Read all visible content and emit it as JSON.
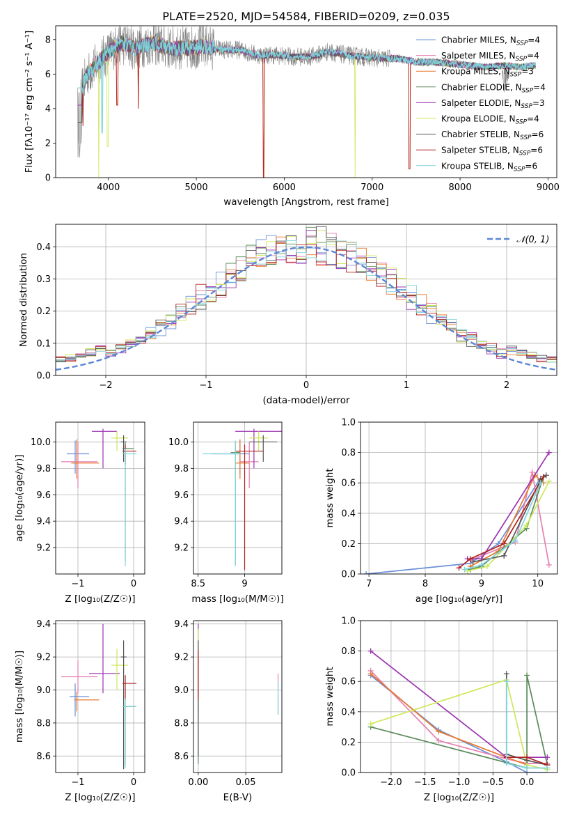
{
  "title": "PLATE=2520, MJD=54584, FIBERID=0209, z=0.035",
  "colors": {
    "Chabrier MILES": "#6a8fd8",
    "Salpeter MILES": "#e67fb0",
    "Kroupa MILES": "#e8782f",
    "Chabrier ELODIE": "#5a8a5a",
    "Salpeter ELODIE": "#9b32b0",
    "Kroupa ELODIE": "#cde85a",
    "Chabrier STELIB": "#555555",
    "Salpeter STELIB": "#b0201e",
    "Kroupa STELIB": "#7fd6dc"
  },
  "chart_data": [
    {
      "id": "spectrum",
      "type": "line",
      "title": "PLATE=2520, MJD=54584, FIBERID=0209, z=0.035",
      "xlabel": "wavelength [Angstrom, rest frame]",
      "ylabel": "Flux [fλ10⁻¹⁷ erg cm⁻² s⁻¹ A⁻¹]",
      "xlim": [
        3400,
        9100
      ],
      "ylim": [
        0,
        8.8
      ],
      "xticks": [
        4000,
        5000,
        6000,
        7000,
        8000,
        9000
      ],
      "yticks": [
        0,
        2,
        4,
        6,
        8
      ],
      "grid": false,
      "legend_position": "top-right",
      "legend": [
        {
          "name": "Chabrier MILES",
          "nssp": "4"
        },
        {
          "name": "Salpeter MILES",
          "nssp": "4"
        },
        {
          "name": "Kroupa MILES",
          "nssp": "3"
        },
        {
          "name": "Chabrier ELODIE",
          "nssp": "4"
        },
        {
          "name": "Salpeter ELODIE",
          "nssp": "3"
        },
        {
          "name": "Kroupa ELODIE",
          "nssp": "4"
        },
        {
          "name": "Chabrier STELIB",
          "nssp": "6"
        },
        {
          "name": "Salpeter STELIB",
          "nssp": "6"
        },
        {
          "name": "Kroupa STELIB",
          "nssp": "6"
        }
      ],
      "continuum": {
        "wavelength": [
          3650,
          3750,
          3850,
          3950,
          4050,
          4150,
          4300,
          4500,
          4700,
          4900,
          5100,
          5300,
          5500,
          5700,
          5900,
          6100,
          6300,
          6500,
          6700,
          6900,
          7100,
          7300,
          7500,
          7700,
          7900,
          8100,
          8300,
          8500,
          8700,
          8850
        ],
        "flux": [
          4.4,
          5.9,
          6.5,
          7.0,
          7.5,
          7.8,
          7.5,
          7.8,
          7.5,
          7.5,
          7.6,
          7.4,
          7.4,
          7.1,
          7.1,
          7.0,
          7.0,
          7.3,
          7.1,
          7.0,
          6.9,
          6.9,
          6.7,
          6.7,
          6.6,
          6.5,
          6.4,
          6.5,
          6.4,
          6.5
        ]
      }
    },
    {
      "id": "residuals",
      "type": "bar",
      "xlabel": "(data-model)/error",
      "ylabel": "Normed distribution",
      "xlim": [
        -2.5,
        2.5
      ],
      "ylim": [
        0,
        0.47
      ],
      "xticks": [
        -2,
        -1,
        0,
        1,
        2
      ],
      "yticks": [
        0.0,
        0.1,
        0.2,
        0.3,
        0.4
      ],
      "grid": true,
      "legend_position": "top-right",
      "reference_curve": {
        "name": "𝒩(0, 1)",
        "mean": 0,
        "sigma": 1
      }
    },
    {
      "id": "age_vs_Z",
      "type": "scatter",
      "xlabel": "Z [log₁₀(Z/Z☉)]",
      "ylabel": "age  [log₁₀(age/yr)]",
      "xlim": [
        -1.4,
        0.2
      ],
      "ylim": [
        9.0,
        10.15
      ],
      "xticks": [
        -1,
        0
      ],
      "yticks": [
        9.2,
        9.4,
        9.6,
        9.8,
        10.0
      ],
      "grid": true,
      "points": [
        {
          "x": -1.05,
          "y": 9.91,
          "xerr": [
            0.15,
            0.25
          ],
          "yerr": [
            0.15,
            0.1
          ],
          "color": "#6a8fd8"
        },
        {
          "x": -1.0,
          "y": 9.85,
          "xerr": [
            0.3,
            0.35
          ],
          "yerr": [
            0.2,
            0.15
          ],
          "color": "#e67fb0"
        },
        {
          "x": -1.02,
          "y": 9.84,
          "xerr": [
            0.1,
            0.4
          ],
          "yerr": [
            0.12,
            0.18
          ],
          "color": "#e8782f"
        },
        {
          "x": -0.15,
          "y": 9.95,
          "xerr": [
            0.05,
            0.15
          ],
          "yerr": [
            0.85,
            0.05
          ],
          "color": "#5a8a5a"
        },
        {
          "x": -0.55,
          "y": 10.08,
          "xerr": [
            0.2,
            0.25
          ],
          "yerr": [
            0.28,
            0.02
          ],
          "color": "#9b32b0"
        },
        {
          "x": -0.3,
          "y": 10.03,
          "xerr": [
            0.1,
            0.2
          ],
          "yerr": [
            0.1,
            0.05
          ],
          "color": "#cde85a"
        },
        {
          "x": -0.18,
          "y": 10.0,
          "xerr": [
            0.05,
            0.05
          ],
          "yerr": [
            0.15,
            0.05
          ],
          "color": "#555555"
        },
        {
          "x": -0.15,
          "y": 9.93,
          "xerr": [
            0.05,
            0.2
          ],
          "yerr": [
            0.1,
            0.05
          ],
          "color": "#b0201e"
        },
        {
          "x": -0.15,
          "y": 9.91,
          "xerr": [
            0.05,
            0.2
          ],
          "yerr": [
            0.85,
            0.04
          ],
          "color": "#7fd6dc"
        }
      ]
    },
    {
      "id": "age_vs_mass",
      "type": "scatter",
      "xlabel": "mass [log₁₀(M/M☉)]",
      "ylabel": "",
      "xlim": [
        8.45,
        9.4
      ],
      "ylim": [
        9.0,
        10.15
      ],
      "xticks": [
        8.5,
        9.0
      ],
      "yticks": [
        9.2,
        9.4,
        9.6,
        9.8,
        10.0
      ],
      "grid": true,
      "points": [
        {
          "x": 8.95,
          "y": 9.91,
          "xerr": [
            0.3,
            0.1
          ],
          "yerr": [
            0.15,
            0.1
          ],
          "color": "#6a8fd8"
        },
        {
          "x": 9.05,
          "y": 9.85,
          "xerr": [
            0.1,
            0.1
          ],
          "yerr": [
            0.2,
            0.15
          ],
          "color": "#e67fb0"
        },
        {
          "x": 8.95,
          "y": 9.84,
          "xerr": [
            0.05,
            0.1
          ],
          "yerr": [
            0.12,
            0.18
          ],
          "color": "#e8782f"
        },
        {
          "x": 8.9,
          "y": 9.92,
          "xerr": [
            0.05,
            0.05
          ],
          "yerr": [
            0.85,
            0.08
          ],
          "color": "#5a8a5a"
        },
        {
          "x": 9.1,
          "y": 10.08,
          "xerr": [
            0.2,
            0.3
          ],
          "yerr": [
            0.28,
            0.02
          ],
          "color": "#9b32b0"
        },
        {
          "x": 9.15,
          "y": 10.03,
          "xerr": [
            0.1,
            0.1
          ],
          "yerr": [
            0.1,
            0.05
          ],
          "color": "#cde85a"
        },
        {
          "x": 9.2,
          "y": 10.0,
          "xerr": [
            0.15,
            0.15
          ],
          "yerr": [
            0.15,
            0.05
          ],
          "color": "#555555"
        },
        {
          "x": 9.0,
          "y": 9.93,
          "xerr": [
            0.1,
            0.2
          ],
          "yerr": [
            0.9,
            0.05
          ],
          "color": "#b0201e"
        },
        {
          "x": 8.9,
          "y": 9.91,
          "xerr": [
            0.35,
            0.05
          ],
          "yerr": [
            0.85,
            0.1
          ],
          "color": "#7fd6dc"
        }
      ]
    },
    {
      "id": "mass_weight_vs_age",
      "type": "line",
      "xlabel": "age  [log₁₀(age/yr)]",
      "ylabel": "mass weight",
      "xlim": [
        6.85,
        10.35
      ],
      "ylim": [
        0,
        1.0
      ],
      "xticks": [
        7,
        8,
        9,
        10
      ],
      "yticks": [
        0.0,
        0.2,
        0.4,
        0.6,
        0.8,
        1.0
      ],
      "grid": true,
      "series": [
        {
          "color": "#6a8fd8",
          "x": [
            6.95,
            8.8,
            9.3,
            10.05
          ],
          "y": [
            0.0,
            0.07,
            0.2,
            0.63
          ]
        },
        {
          "color": "#e67fb0",
          "x": [
            8.8,
            9.6,
            9.9,
            10.2
          ],
          "y": [
            0.09,
            0.21,
            0.67,
            0.06
          ]
        },
        {
          "color": "#e8782f",
          "x": [
            8.8,
            9.3,
            9.95,
            10.1
          ],
          "y": [
            0.05,
            0.15,
            0.65,
            0.6
          ]
        },
        {
          "color": "#5a8a5a",
          "x": [
            8.8,
            9.0,
            9.8,
            10.1
          ],
          "y": [
            0.03,
            0.05,
            0.3,
            0.64
          ]
        },
        {
          "color": "#9b32b0",
          "x": [
            8.75,
            9.0,
            10.2
          ],
          "y": [
            0.1,
            0.1,
            0.8
          ]
        },
        {
          "color": "#cde85a",
          "x": [
            8.75,
            9.1,
            9.8,
            10.2
          ],
          "y": [
            0.02,
            0.05,
            0.32,
            0.61
          ]
        },
        {
          "color": "#555555",
          "x": [
            8.85,
            9.4,
            10.05,
            10.15
          ],
          "y": [
            0.08,
            0.12,
            0.62,
            0.65
          ]
        },
        {
          "color": "#b0201e",
          "x": [
            8.6,
            8.8,
            9.4,
            10.1
          ],
          "y": [
            0.04,
            0.1,
            0.2,
            0.64
          ]
        },
        {
          "color": "#7fd6dc",
          "x": [
            8.7,
            9.0,
            9.6,
            10.05
          ],
          "y": [
            0.03,
            0.06,
            0.22,
            0.6
          ]
        }
      ]
    },
    {
      "id": "mass_vs_Z",
      "type": "scatter",
      "xlabel": "Z [log₁₀(Z/Z☉)]",
      "ylabel": "mass [log₁₀(M/M☉)]",
      "xlim": [
        -1.4,
        0.2
      ],
      "ylim": [
        8.5,
        9.42
      ],
      "xticks": [
        -1,
        0
      ],
      "yticks": [
        8.6,
        8.8,
        9.0,
        9.2,
        9.4
      ],
      "grid": true,
      "points": [
        {
          "x": -1.05,
          "y": 8.96,
          "xerr": [
            0.1,
            0.25
          ],
          "yerr": [
            0.12,
            0.08
          ],
          "color": "#6a8fd8"
        },
        {
          "x": -1.0,
          "y": 9.08,
          "xerr": [
            0.3,
            0.35
          ],
          "yerr": [
            0.1,
            0.1
          ],
          "color": "#e67fb0"
        },
        {
          "x": -1.02,
          "y": 8.94,
          "xerr": [
            0.05,
            0.4
          ],
          "yerr": [
            0.07,
            0.05
          ],
          "color": "#e8782f"
        },
        {
          "x": -0.15,
          "y": 8.9,
          "xerr": [
            0.05,
            0.2
          ],
          "yerr": [
            0.35,
            0.05
          ],
          "color": "#5a8a5a"
        },
        {
          "x": -0.55,
          "y": 9.1,
          "xerr": [
            0.25,
            0.3
          ],
          "yerr": [
            0.12,
            0.3
          ],
          "color": "#9b32b0"
        },
        {
          "x": -0.3,
          "y": 9.15,
          "xerr": [
            0.1,
            0.2
          ],
          "yerr": [
            0.15,
            0.1
          ],
          "color": "#cde85a"
        },
        {
          "x": -0.18,
          "y": 9.2,
          "xerr": [
            0.05,
            0.05
          ],
          "yerr": [
            0.68,
            0.1
          ],
          "color": "#555555"
        },
        {
          "x": -0.15,
          "y": 9.04,
          "xerr": [
            0.05,
            0.2
          ],
          "yerr": [
            0.1,
            0.05
          ],
          "color": "#b0201e"
        },
        {
          "x": -0.15,
          "y": 8.9,
          "xerr": [
            0.05,
            0.2
          ],
          "yerr": [
            0.37,
            0.05
          ],
          "color": "#7fd6dc"
        }
      ]
    },
    {
      "id": "mass_vs_ebv",
      "type": "scatter",
      "xlabel": "E(B-V)",
      "ylabel": "",
      "xlim": [
        -0.005,
        0.088
      ],
      "ylim": [
        8.5,
        9.42
      ],
      "xticks": [
        0.0,
        0.05
      ],
      "xtick_labels": [
        "0.00",
        "0.05"
      ],
      "yticks": [
        8.6,
        8.8,
        9.0,
        9.2,
        9.4
      ],
      "grid": true,
      "points": [
        {
          "x": 0.0,
          "y": 8.96,
          "yerr": [
            0.12,
            0.08
          ],
          "color": "#6a8fd8"
        },
        {
          "x": 0.084,
          "y": 9.0,
          "yerr": [
            0.15,
            0.1
          ],
          "color": "#e67fb0"
        },
        {
          "x": 0.0,
          "y": 8.94,
          "yerr": [
            0.07,
            0.05
          ],
          "color": "#e8782f"
        },
        {
          "x": 0.0,
          "y": 8.9,
          "yerr": [
            0.35,
            0.05
          ],
          "color": "#5a8a5a"
        },
        {
          "x": 0.0,
          "y": 9.1,
          "yerr": [
            0.12,
            0.3
          ],
          "color": "#9b32b0"
        },
        {
          "x": 0.0,
          "y": 9.15,
          "yerr": [
            0.15,
            0.22
          ],
          "color": "#cde85a"
        },
        {
          "x": 0.0,
          "y": 9.2,
          "yerr": [
            0.6,
            0.1
          ],
          "color": "#555555"
        },
        {
          "x": 0.0,
          "y": 9.04,
          "yerr": [
            0.1,
            0.2
          ],
          "color": "#b0201e"
        },
        {
          "x": 0.084,
          "y": 8.95,
          "yerr": [
            0.1,
            0.1
          ],
          "color": "#7fd6dc"
        }
      ]
    },
    {
      "id": "mass_weight_vs_Z",
      "type": "line",
      "xlabel": "Z [log₁₀(Z/Z☉)]",
      "ylabel": "mass weight",
      "xlim": [
        -2.45,
        0.45
      ],
      "ylim": [
        0,
        1.0
      ],
      "xticks": [
        -2.0,
        -1.5,
        -1.0,
        -0.5,
        0.0
      ],
      "xtick_labels": [
        "−2.0",
        "−1.5",
        "−1.0",
        "−0.5",
        "0.0"
      ],
      "yticks": [
        0.0,
        0.2,
        0.4,
        0.6,
        0.8,
        1.0
      ],
      "grid": true,
      "series": [
        {
          "color": "#6a8fd8",
          "x": [
            -2.3,
            -1.3,
            -0.3,
            0.0,
            0.3
          ],
          "y": [
            0.64,
            0.28,
            0.07,
            0.0,
            0.0
          ]
        },
        {
          "color": "#e67fb0",
          "x": [
            -2.3,
            -1.3,
            -0.3,
            0.0,
            0.3
          ],
          "y": [
            0.67,
            0.21,
            0.09,
            0.06,
            0.06
          ]
        },
        {
          "color": "#e8782f",
          "x": [
            -2.3,
            -1.3,
            -0.3,
            0.0
          ],
          "y": [
            0.65,
            0.27,
            0.1,
            0.05
          ]
        },
        {
          "color": "#5a8a5a",
          "x": [
            -2.3,
            0.0,
            0.0,
            0.3
          ],
          "y": [
            0.3,
            0.03,
            0.64,
            0.05
          ]
        },
        {
          "color": "#9b32b0",
          "x": [
            -2.3,
            -0.3,
            0.3
          ],
          "y": [
            0.8,
            0.1,
            0.1
          ]
        },
        {
          "color": "#cde85a",
          "x": [
            -2.3,
            -0.3,
            0.0,
            0.3
          ],
          "y": [
            0.32,
            0.61,
            0.05,
            0.02
          ]
        },
        {
          "color": "#555555",
          "x": [
            -0.3,
            -0.3,
            0.0,
            0.3
          ],
          "y": [
            0.65,
            0.12,
            0.08,
            0.05
          ]
        },
        {
          "color": "#b0201e",
          "x": [
            -0.3,
            0.0,
            0.3
          ],
          "y": [
            0.1,
            0.1,
            0.05
          ]
        },
        {
          "color": "#7fd6dc",
          "x": [
            -0.3,
            -0.3,
            0.0,
            0.3
          ],
          "y": [
            0.6,
            0.06,
            0.03,
            0.03
          ]
        }
      ]
    }
  ]
}
